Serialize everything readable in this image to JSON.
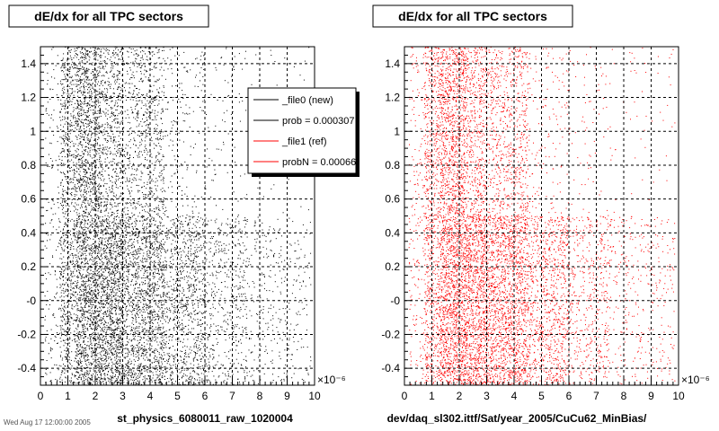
{
  "chart_data": [
    {
      "type": "scatter",
      "title": "dE/dx for all TPC sectors",
      "xlabel": "st_physics_6080011_raw_1020004",
      "ylabel": "",
      "x_exponent_label": "×10⁻⁶",
      "xlim": [
        0,
        10
      ],
      "ylim": [
        -0.5,
        1.5
      ],
      "grid": true,
      "x_ticks": [
        "0",
        "1",
        "2",
        "3",
        "4",
        "5",
        "6",
        "7",
        "8",
        "9",
        "10"
      ],
      "y_ticks": [
        "-0.4",
        "-0.2",
        "-0",
        "0.2",
        "0.4",
        "0.6",
        "0.8",
        "1",
        "1.2",
        "1.4"
      ],
      "series": [
        {
          "name": "_file0 (new)",
          "color": "#000000"
        }
      ],
      "legend": {
        "placement": "top-right",
        "entries": [
          {
            "label": "_file0 (new)",
            "color": "#000000"
          },
          {
            "label": "prob = 0.000307",
            "color": "#000000"
          },
          {
            "label": "_file1 (ref)",
            "color": "#ff0000"
          },
          {
            "label": "probN = 0.00066",
            "color": "#ff0000"
          }
        ]
      }
    },
    {
      "type": "scatter",
      "title": "dE/dx for all TPC sectors",
      "xlabel": "dev/daq_sl302.ittf/Sat/year_2005/CuCu62_MinBias/",
      "ylabel": "",
      "x_exponent_label": "×10⁻⁶",
      "xlim": [
        0,
        10
      ],
      "ylim": [
        -0.5,
        1.5
      ],
      "grid": true,
      "x_ticks": [
        "0",
        "1",
        "2",
        "3",
        "4",
        "5",
        "6",
        "7",
        "8",
        "9",
        "10"
      ],
      "y_ticks": [
        "-0.4",
        "-0.2",
        "-0",
        "0.2",
        "0.4",
        "0.6",
        "0.8",
        "1",
        "1.2",
        "1.4"
      ],
      "series": [
        {
          "name": "_file1 (ref)",
          "color": "#ff0000"
        }
      ]
    }
  ],
  "footer": "Wed Aug 17 12:00:00 2005"
}
